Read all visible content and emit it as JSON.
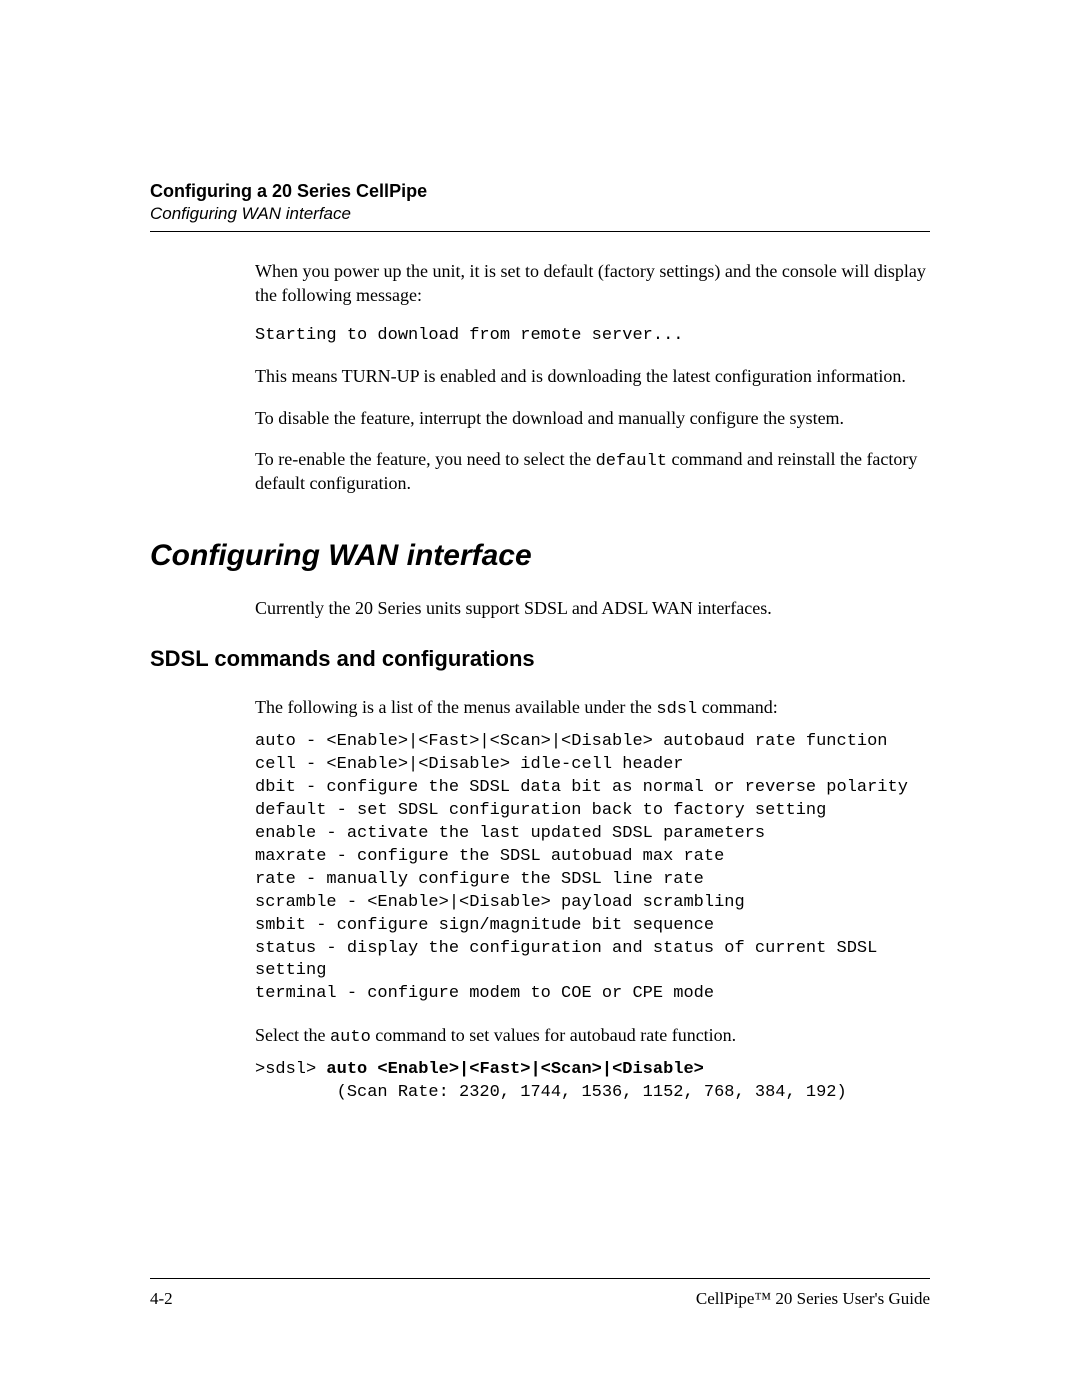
{
  "header": {
    "chapter": "Configuring a 20 Series CellPipe",
    "section": "Configuring WAN interface"
  },
  "body": {
    "p1a": "When you power up the unit, it is set to default (factory settings) and the console will display the following message:",
    "code1": "Starting to download from remote server...",
    "p2": "This means TURN-UP is enabled and is downloading the latest configuration information.",
    "p3": "To disable the feature, interrupt the download and manually configure the system.",
    "p4_pre": "To re-enable the feature, you need to select the ",
    "p4_code": "default",
    "p4_post": " command and reinstall the factory default configuration."
  },
  "section1": {
    "title": "Configuring WAN interface",
    "p1": "Currently the 20 Series units support SDSL and ADSL WAN interfaces."
  },
  "section2": {
    "title": "SDSL commands and configurations",
    "p1_pre": "The following is a list of the menus available under the ",
    "p1_code": "sdsl",
    "p1_post": " command:",
    "menu": "auto - <Enable>|<Fast>|<Scan>|<Disable> autobaud rate function\ncell - <Enable>|<Disable> idle-cell header\ndbit - configure the SDSL data bit as normal or reverse polarity\ndefault - set SDSL configuration back to factory setting\nenable - activate the last updated SDSL parameters\nmaxrate - configure the SDSL autobuad max rate\nrate - manually configure the SDSL line rate\nscramble - <Enable>|<Disable> payload scrambling\nsmbit - configure sign/magnitude bit sequence\nstatus - display the configuration and status of current SDSL\nsetting\nterminal - configure modem to COE or CPE mode",
    "p2_pre": "Select the ",
    "p2_code": "auto",
    "p2_post": " command to set values for autobaud rate function.",
    "cmd_prompt": ">sdsl> ",
    "cmd_bold": "auto <Enable>|<Fast>|<Scan>|<Disable>",
    "cmd_line2": "        (Scan Rate: 2320, 1744, 1536, 1152, 768, 384, 192)"
  },
  "footer": {
    "left": "4-2",
    "right": "CellPipe™ 20 Series User's Guide"
  }
}
